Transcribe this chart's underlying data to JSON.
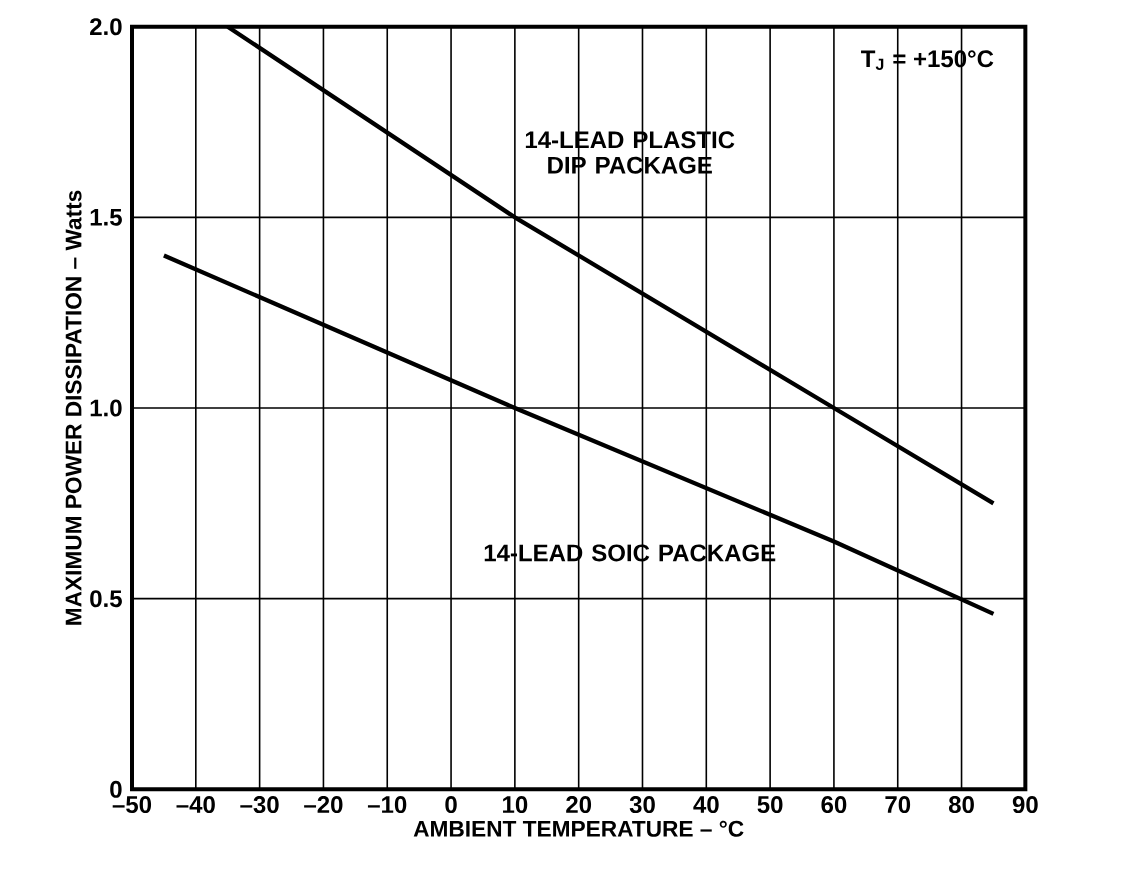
{
  "chart_data": {
    "type": "line",
    "xlabel": "AMBIENT TEMPERATURE – °C",
    "ylabel": "MAXIMUM POWER DISSIPATION – Watts",
    "annotations": [
      "T$_{J}$ = +150°C"
    ],
    "series": [
      {
        "name": "14-LEAD PLASTIC DIP PACKAGE",
        "color": "#000000",
        "x": [
          -35,
          10,
          60,
          85
        ],
        "values": [
          2.0,
          1.5,
          1.0,
          0.75
        ]
      },
      {
        "name": "14-LEAD SOIC PACKAGE",
        "color": "#000000",
        "x": [
          -45,
          10,
          30,
          60,
          85
        ],
        "values": [
          1.4,
          1.0,
          0.86,
          0.65,
          0.46
        ]
      }
    ],
    "xlim": [
      -50,
      90
    ],
    "xticks": [
      {
        "value": -50,
        "label": "–50"
      },
      {
        "value": -40,
        "label": "–40"
      },
      {
        "value": -30,
        "label": "–30"
      },
      {
        "value": -20,
        "label": "–20"
      },
      {
        "value": -10,
        "label": "–10"
      },
      0,
      10,
      20,
      30,
      40,
      50,
      60,
      70,
      80,
      90
    ],
    "ylim": [
      0,
      2.0
    ],
    "yticks": [
      0,
      {
        "value": 0.5,
        "label": "0.5"
      },
      {
        "value": 1.0,
        "label": "1.0"
      },
      {
        "value": 1.5,
        "label": "1.5"
      },
      {
        "value": 2.0,
        "label": "2.0"
      }
    ],
    "grid": true,
    "legend": false,
    "marker": "none",
    "line_style": "solid"
  }
}
